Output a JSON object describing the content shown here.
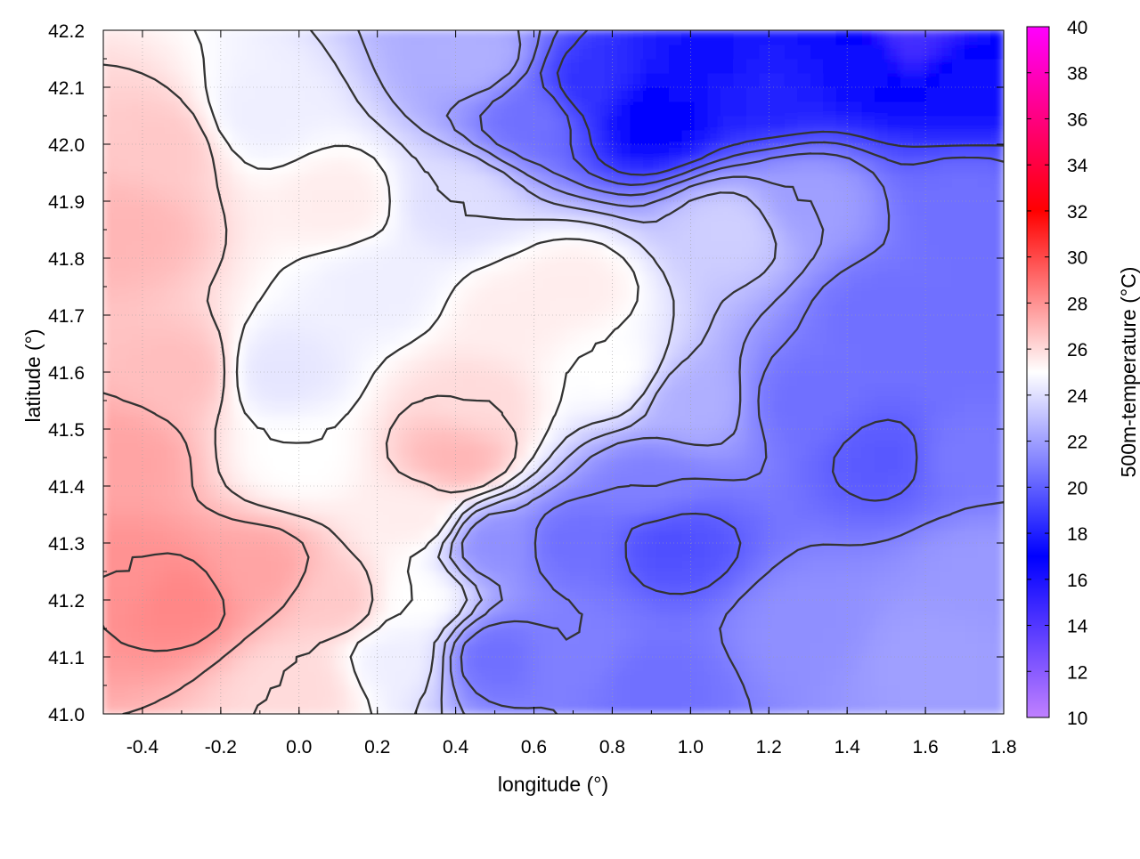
{
  "chart_data": {
    "type": "heatmap",
    "xlabel": "longitude (°)",
    "ylabel": "latitude (°)",
    "colorbar_label": "500m-temperature (°C)",
    "xlim": [
      -0.5,
      1.8
    ],
    "ylim": [
      41.0,
      42.2
    ],
    "x_ticks": [
      "-0.4",
      "-0.2",
      "0.0",
      "0.2",
      "0.4",
      "0.6",
      "0.8",
      "1.0",
      "1.2",
      "1.4",
      "1.6",
      "1.8"
    ],
    "x_tick_values": [
      -0.4,
      -0.2,
      0.0,
      0.2,
      0.4,
      0.6,
      0.8,
      1.0,
      1.2,
      1.4,
      1.6,
      1.8
    ],
    "y_ticks": [
      "41.0",
      "41.1",
      "41.2",
      "41.3",
      "41.4",
      "41.5",
      "41.6",
      "41.7",
      "41.8",
      "41.9",
      "42.0",
      "42.1",
      "42.2"
    ],
    "y_tick_values": [
      41.0,
      41.1,
      41.2,
      41.3,
      41.4,
      41.5,
      41.6,
      41.7,
      41.8,
      41.9,
      42.0,
      42.1,
      42.2
    ],
    "colorbar_range": [
      10,
      40
    ],
    "colorbar_ticks": [
      "10",
      "12",
      "14",
      "16",
      "18",
      "20",
      "22",
      "24",
      "26",
      "28",
      "30",
      "32",
      "34",
      "36",
      "38",
      "40"
    ],
    "colorbar_tick_values": [
      10,
      12,
      14,
      16,
      18,
      20,
      22,
      24,
      26,
      28,
      30,
      32,
      34,
      36,
      38,
      40
    ],
    "colormap": [
      {
        "value": 10,
        "color": "#c080ff"
      },
      {
        "value": 17,
        "color": "#0000ff"
      },
      {
        "value": 25,
        "color": "#ffffff"
      },
      {
        "value": 32,
        "color": "#ff0000"
      },
      {
        "value": 40,
        "color": "#ff00ff"
      }
    ],
    "grid": true,
    "contours": true,
    "field_samples": [
      {
        "lon": -0.45,
        "lat": 41.25,
        "temp": 28.0
      },
      {
        "lon": -0.3,
        "lat": 41.2,
        "temp": 28.3
      },
      {
        "lon": -0.1,
        "lat": 41.25,
        "temp": 27.5
      },
      {
        "lon": 0.1,
        "lat": 41.2,
        "temp": 26.5
      },
      {
        "lon": -0.45,
        "lat": 41.45,
        "temp": 27.5
      },
      {
        "lon": -0.3,
        "lat": 41.6,
        "temp": 26.8
      },
      {
        "lon": -0.45,
        "lat": 41.85,
        "temp": 27.0
      },
      {
        "lon": -0.35,
        "lat": 42.0,
        "temp": 26.5
      },
      {
        "lon": -0.1,
        "lat": 42.05,
        "temp": 24.5
      },
      {
        "lon": 0.1,
        "lat": 41.9,
        "temp": 25.5
      },
      {
        "lon": -0.05,
        "lat": 41.6,
        "temp": 24.2
      },
      {
        "lon": 0.0,
        "lat": 41.45,
        "temp": 25.0
      },
      {
        "lon": 0.2,
        "lat": 41.75,
        "temp": 24.5
      },
      {
        "lon": 0.3,
        "lat": 41.35,
        "temp": 25.5
      },
      {
        "lon": 0.4,
        "lat": 41.45,
        "temp": 27.0
      },
      {
        "lon": 0.45,
        "lat": 41.55,
        "temp": 26.0
      },
      {
        "lon": 0.55,
        "lat": 41.7,
        "temp": 25.5
      },
      {
        "lon": 0.7,
        "lat": 41.75,
        "temp": 25.5
      },
      {
        "lon": 0.8,
        "lat": 41.6,
        "temp": 25.0
      },
      {
        "lon": 0.4,
        "lat": 41.9,
        "temp": 24.0
      },
      {
        "lon": 0.45,
        "lat": 42.15,
        "temp": 22.5
      },
      {
        "lon": 0.6,
        "lat": 42.05,
        "temp": 20.5
      },
      {
        "lon": 0.75,
        "lat": 42.1,
        "temp": 18.5
      },
      {
        "lon": 0.9,
        "lat": 42.05,
        "temp": 17.0
      },
      {
        "lon": 1.05,
        "lat": 42.15,
        "temp": 17.5
      },
      {
        "lon": 1.2,
        "lat": 42.1,
        "temp": 18.0
      },
      {
        "lon": 1.45,
        "lat": 42.15,
        "temp": 17.5
      },
      {
        "lon": 1.55,
        "lat": 42.18,
        "temp": 14.5
      },
      {
        "lon": 1.7,
        "lat": 42.1,
        "temp": 17.5
      },
      {
        "lon": 1.7,
        "lat": 41.9,
        "temp": 20.5
      },
      {
        "lon": 1.3,
        "lat": 41.9,
        "temp": 22.0
      },
      {
        "lon": 1.1,
        "lat": 41.85,
        "temp": 23.5
      },
      {
        "lon": 1.5,
        "lat": 41.7,
        "temp": 20.5
      },
      {
        "lon": 1.7,
        "lat": 41.65,
        "temp": 20.5
      },
      {
        "lon": 1.3,
        "lat": 41.55,
        "temp": 20.5
      },
      {
        "lon": 1.5,
        "lat": 41.45,
        "temp": 19.8
      },
      {
        "lon": 1.7,
        "lat": 41.45,
        "temp": 20.8
      },
      {
        "lon": 1.0,
        "lat": 41.55,
        "temp": 22.5
      },
      {
        "lon": 0.9,
        "lat": 41.4,
        "temp": 21.0
      },
      {
        "lon": 0.7,
        "lat": 41.3,
        "temp": 20.5
      },
      {
        "lon": 0.95,
        "lat": 41.3,
        "temp": 19.5
      },
      {
        "lon": 0.5,
        "lat": 41.3,
        "temp": 21.5
      },
      {
        "lon": 0.5,
        "lat": 41.1,
        "temp": 20.5
      },
      {
        "lon": 0.7,
        "lat": 41.1,
        "temp": 21.0
      },
      {
        "lon": 0.9,
        "lat": 41.05,
        "temp": 20.5
      },
      {
        "lon": 1.3,
        "lat": 41.15,
        "temp": 21.5
      },
      {
        "lon": 1.6,
        "lat": 41.1,
        "temp": 22.0
      },
      {
        "lon": 1.75,
        "lat": 41.25,
        "temp": 21.8
      },
      {
        "lon": 0.25,
        "lat": 41.1,
        "temp": 24.5
      },
      {
        "lon": 0.3,
        "lat": 41.2,
        "temp": 25.0
      },
      {
        "lon": 0.0,
        "lat": 41.05,
        "temp": 26.0
      }
    ]
  }
}
